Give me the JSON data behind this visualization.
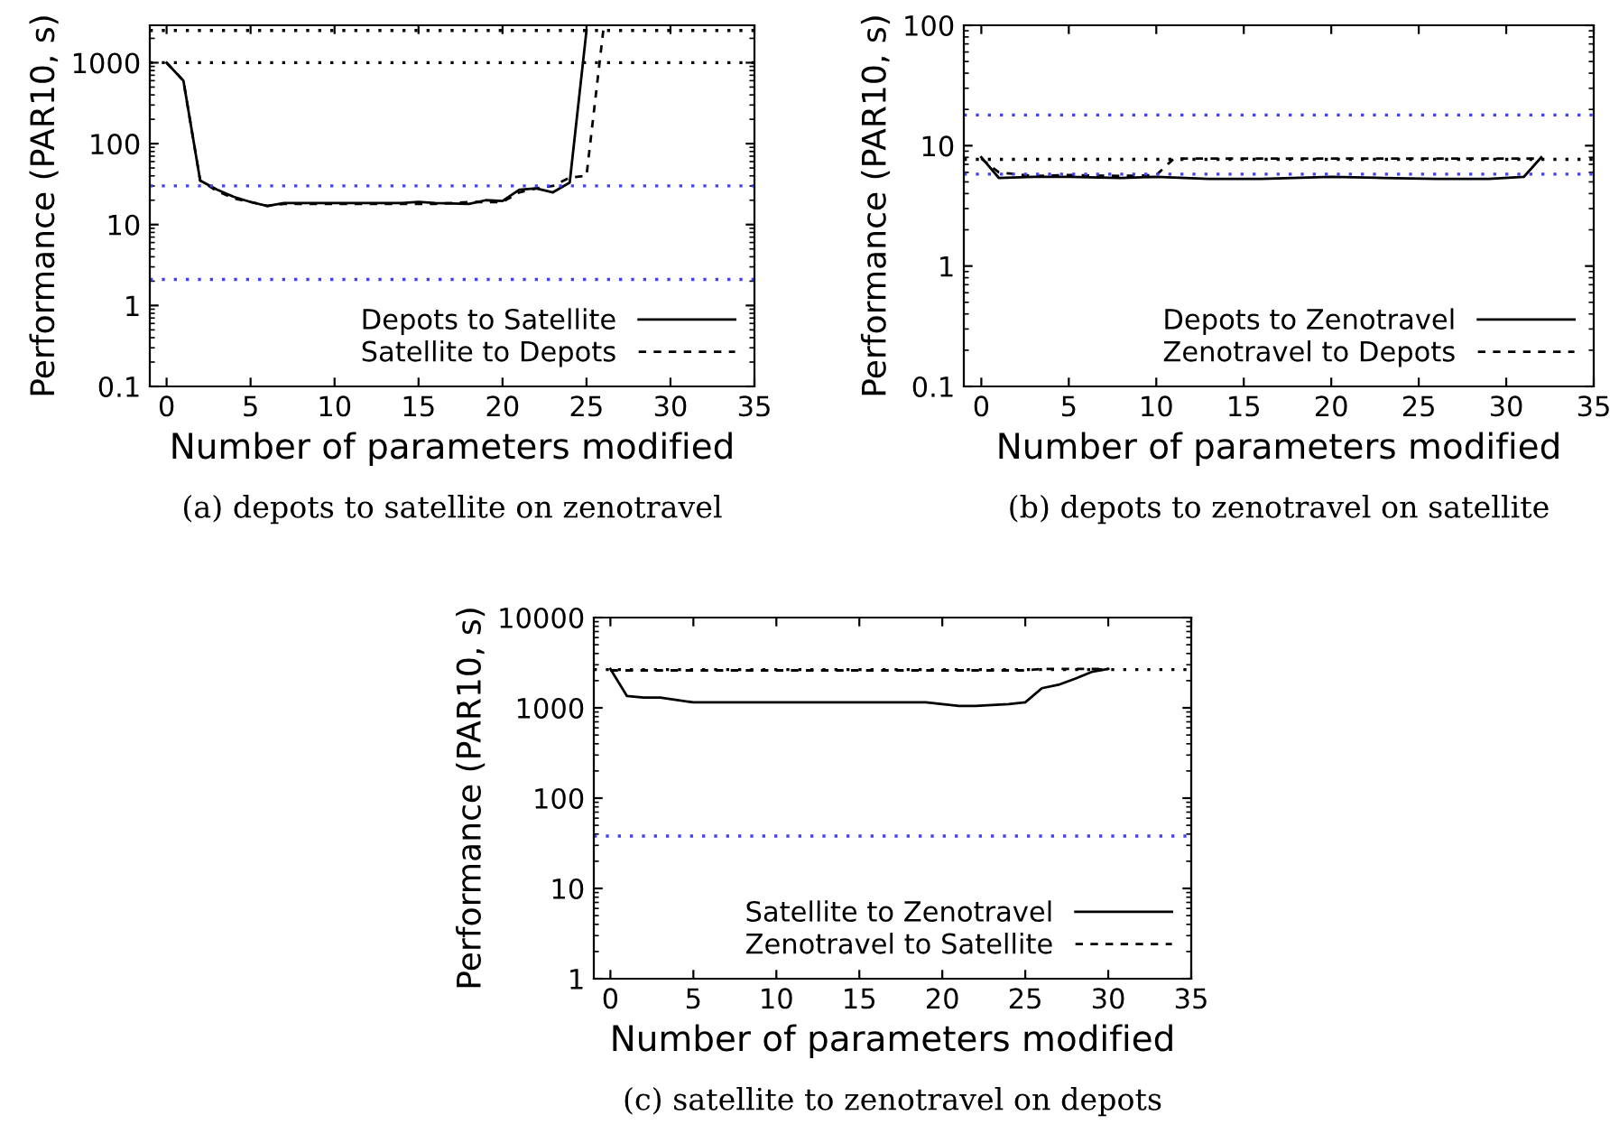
{
  "chart_data": [
    {
      "type": "line",
      "xlabel": "Number of parameters modified",
      "ylabel": "Performance (PAR10, s)",
      "log": "y",
      "xlim": [
        -1,
        35
      ],
      "xticks": [
        0,
        5,
        10,
        15,
        20,
        25,
        30,
        35
      ],
      "ylim": [
        0.1,
        2900
      ],
      "yticks": [
        0.1,
        1,
        10,
        100,
        1000
      ],
      "grid": false,
      "legend": "bottom right",
      "annotations": [
        "(a) depots to satellite on zenotravel"
      ],
      "series": [
        {
          "name": "Depots to Satellite",
          "color": "#000000",
          "line_style": "solid",
          "x": [
            0,
            1,
            2,
            3,
            4,
            5,
            6,
            7,
            8,
            10,
            12,
            14,
            15,
            16,
            18,
            19,
            20,
            21,
            22,
            23,
            24,
            25
          ],
          "values": [
            1000,
            600,
            35,
            27,
            22,
            19,
            17,
            18.5,
            18.5,
            18.5,
            18.5,
            18.5,
            19,
            18.5,
            18,
            20,
            19.5,
            27,
            28,
            25,
            33,
            2500
          ]
        },
        {
          "name": "Satellite to Depots",
          "color": "#000000",
          "line_style": "dashed",
          "x": [
            0,
            1,
            2,
            3,
            4,
            5,
            6,
            7,
            8,
            10,
            12,
            14,
            16,
            18,
            19,
            20,
            21,
            22,
            23,
            24,
            25,
            26
          ],
          "values": [
            1000,
            600,
            35,
            26,
            21,
            19,
            17,
            18,
            18,
            18,
            18,
            18,
            18,
            19,
            19,
            19,
            25,
            28,
            30,
            38,
            40,
            2500
          ]
        }
      ],
      "ref_lines": [
        {
          "axis": "y",
          "value": 2500,
          "color": "#000000",
          "line_style": "dotted"
        },
        {
          "axis": "y",
          "value": 1000,
          "color": "#000000",
          "line_style": "dotted"
        },
        {
          "axis": "y",
          "value": 30,
          "color": "#4040ff",
          "line_style": "dotted"
        },
        {
          "axis": "y",
          "value": 2.1,
          "color": "#4040ff",
          "line_style": "dotted"
        }
      ]
    },
    {
      "type": "line",
      "xlabel": "Number of parameters modified",
      "ylabel": "Performance (PAR10, s)",
      "log": "y",
      "xlim": [
        -1,
        35
      ],
      "xticks": [
        0,
        5,
        10,
        15,
        20,
        25,
        30,
        35
      ],
      "ylim": [
        0.1,
        100
      ],
      "yticks": [
        0.1,
        1,
        10,
        100
      ],
      "grid": false,
      "legend": "bottom right",
      "annotations": [
        "(b) depots to zenotravel on satellite"
      ],
      "series": [
        {
          "name": "Depots to Zenotravel",
          "color": "#000000",
          "line_style": "solid",
          "x": [
            0,
            1,
            3,
            5,
            8,
            10,
            13,
            16,
            20,
            23,
            26,
            29,
            31,
            32
          ],
          "values": [
            8,
            5.4,
            5.5,
            5.5,
            5.4,
            5.5,
            5.3,
            5.3,
            5.5,
            5.4,
            5.3,
            5.3,
            5.5,
            8
          ]
        },
        {
          "name": "Zenotravel to Depots",
          "color": "#000000",
          "line_style": "dashed",
          "x": [
            0,
            1,
            3,
            5,
            8,
            10,
            11,
            15,
            20,
            25,
            30,
            32
          ],
          "values": [
            7.8,
            6,
            5.6,
            5.7,
            5.6,
            5.7,
            7.8,
            7.8,
            7.8,
            7.8,
            7.8,
            7.8
          ]
        }
      ],
      "ref_lines": [
        {
          "axis": "y",
          "value": 18,
          "color": "#4040ff",
          "line_style": "dotted"
        },
        {
          "axis": "y",
          "value": 7.7,
          "color": "#000000",
          "line_style": "dotted"
        },
        {
          "axis": "y",
          "value": 5.8,
          "color": "#4040ff",
          "line_style": "dotted"
        }
      ]
    },
    {
      "type": "line",
      "xlabel": "Number of parameters modified",
      "ylabel": "Performance (PAR10, s)",
      "log": "y",
      "xlim": [
        -1,
        35
      ],
      "xticks": [
        0,
        5,
        10,
        15,
        20,
        25,
        30,
        35
      ],
      "ylim": [
        1,
        10000
      ],
      "yticks": [
        1,
        10,
        100,
        1000,
        10000
      ],
      "grid": false,
      "legend": "bottom right",
      "annotations": [
        "(c) satellite to zenotravel on depots"
      ],
      "series": [
        {
          "name": "Satellite to Zenotravel",
          "color": "#000000",
          "line_style": "solid",
          "x": [
            0,
            1,
            2,
            3,
            5,
            10,
            15,
            19,
            21,
            22,
            24,
            25,
            26,
            27,
            28,
            29,
            30
          ],
          "values": [
            2700,
            1350,
            1300,
            1300,
            1150,
            1150,
            1150,
            1150,
            1050,
            1050,
            1100,
            1150,
            1650,
            1800,
            2100,
            2500,
            2700
          ]
        },
        {
          "name": "Zenotravel to Satellite",
          "color": "#000000",
          "line_style": "dashed",
          "x": [
            0,
            5,
            10,
            15,
            20,
            25,
            26,
            30
          ],
          "values": [
            2600,
            2600,
            2600,
            2600,
            2600,
            2600,
            2700,
            2700
          ]
        }
      ],
      "ref_lines": [
        {
          "axis": "y",
          "value": 2650,
          "color": "#000000",
          "line_style": "dotted"
        },
        {
          "axis": "y",
          "value": 38,
          "color": "#4040ff",
          "line_style": "dotted"
        }
      ]
    }
  ]
}
